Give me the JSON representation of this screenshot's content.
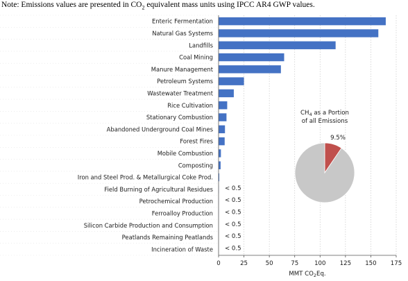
{
  "note": {
    "before": "Note: Emissions values are presented in CO",
    "sub": "2",
    "after": " equivalent mass units using IPCC AR4 GWP values."
  },
  "chart_data": [
    {
      "type": "bar",
      "orientation": "horizontal",
      "categories": [
        "Enteric Fermentation",
        "Natural Gas Systems",
        "Landfills",
        "Coal Mining",
        "Manure Management",
        "Petroleum Systems",
        "Wastewater Treatment",
        "Rice Cultivation",
        "Stationary Combustion",
        "Abandoned Underground Coal Mines",
        "Forest Fires",
        "Mobile Combustion",
        "Composting",
        "Iron and Steel Prod. & Metallurgical Coke Prod.",
        "Field Burning of Agricultural Residues",
        "Petrochemical Production",
        "Ferroalloy Production",
        "Silicon Carbide Production and Consumption",
        "Peatlands Remaining Peatlands",
        "Incineration of Waste"
      ],
      "values": [
        164.7,
        157.4,
        115.3,
        64.6,
        61.4,
        25.0,
        15.0,
        8.5,
        7.8,
        6.3,
        6.0,
        2.3,
        2.0,
        0.7,
        0.2,
        0.1,
        0.1,
        0.0,
        0.0,
        0.0
      ],
      "data_labels": [
        "",
        "",
        "",
        "",
        "",
        "",
        "",
        "",
        "",
        "",
        "",
        "",
        "",
        "",
        "< 0.5",
        "< 0.5",
        "< 0.5",
        "< 0.5",
        "< 0.5",
        "< 0.5"
      ],
      "xlabel": {
        "before": "MMT CO",
        "sub": "2",
        "after": "Eq."
      },
      "xticks": [
        "0",
        "25",
        "50",
        "75",
        "100",
        "125",
        "150",
        "175"
      ],
      "xlim": [
        0,
        175
      ],
      "grid": "vertical dotted",
      "bar_color": "#4472c4"
    },
    {
      "type": "pie",
      "title_line1": {
        "before": "CH",
        "sub": "4",
        "after": " as a Portion"
      },
      "title_line2": "of all Emissions",
      "values": [
        9.5,
        90.5
      ],
      "slice_label": "9.5%",
      "colors": [
        "#c0504d",
        "#c8c8c8"
      ]
    }
  ]
}
